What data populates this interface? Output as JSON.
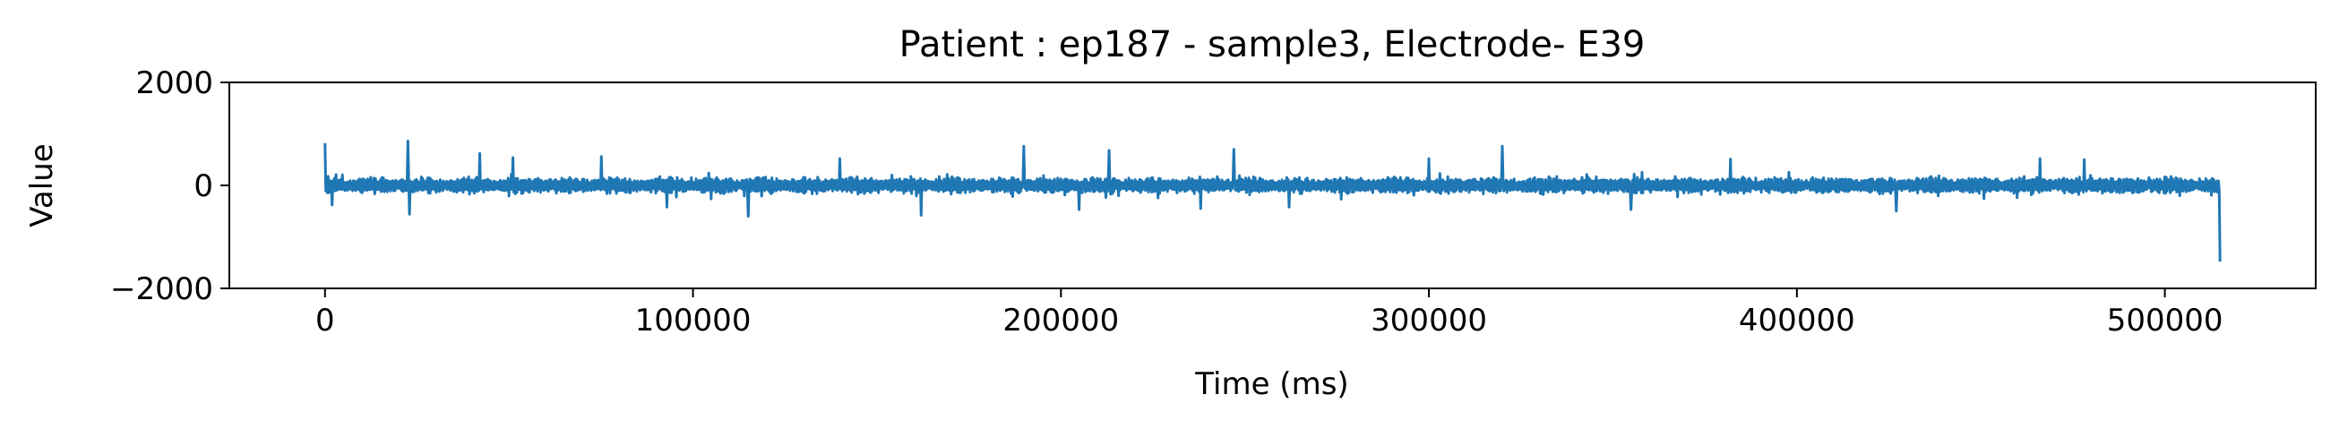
{
  "chart_data": {
    "type": "line",
    "title": "Patient : ep187 - sample3, Electrode- E39",
    "xlabel": "Time (ms)",
    "ylabel": "Value",
    "xlim": [
      -26000,
      541000
    ],
    "ylim": [
      -2000,
      2000
    ],
    "x_ticks": [
      0,
      100000,
      200000,
      300000,
      400000,
      500000
    ],
    "x_tick_labels": [
      "0",
      "100000",
      "200000",
      "300000",
      "400000",
      "500000"
    ],
    "y_ticks": [
      -2000,
      0,
      2000
    ],
    "y_tick_labels": [
      "−2000",
      "0",
      "2000"
    ],
    "grid": false,
    "legend": "none",
    "series": [
      {
        "color": "#1f77b4",
        "x_start": 0,
        "x_end": 515000,
        "baseline_amplitude": 180,
        "spikes": [
          {
            "x": 0,
            "y": 820
          },
          {
            "x": 2000,
            "y": -380
          },
          {
            "x": 22500,
            "y": 860
          },
          {
            "x": 23000,
            "y": -560
          },
          {
            "x": 42000,
            "y": 620
          },
          {
            "x": 51000,
            "y": 540
          },
          {
            "x": 75000,
            "y": 560
          },
          {
            "x": 93000,
            "y": -420
          },
          {
            "x": 115000,
            "y": -600
          },
          {
            "x": 140000,
            "y": 520
          },
          {
            "x": 162000,
            "y": -580
          },
          {
            "x": 190000,
            "y": 760
          },
          {
            "x": 205000,
            "y": -470
          },
          {
            "x": 213000,
            "y": 680
          },
          {
            "x": 238000,
            "y": -450
          },
          {
            "x": 247000,
            "y": 700
          },
          {
            "x": 262000,
            "y": -420
          },
          {
            "x": 300000,
            "y": 520
          },
          {
            "x": 320000,
            "y": 760
          },
          {
            "x": 355000,
            "y": -470
          },
          {
            "x": 382000,
            "y": 510
          },
          {
            "x": 427000,
            "y": -500
          },
          {
            "x": 466000,
            "y": 520
          },
          {
            "x": 478000,
            "y": 500
          },
          {
            "x": 515000,
            "y": -1480
          }
        ]
      }
    ]
  }
}
